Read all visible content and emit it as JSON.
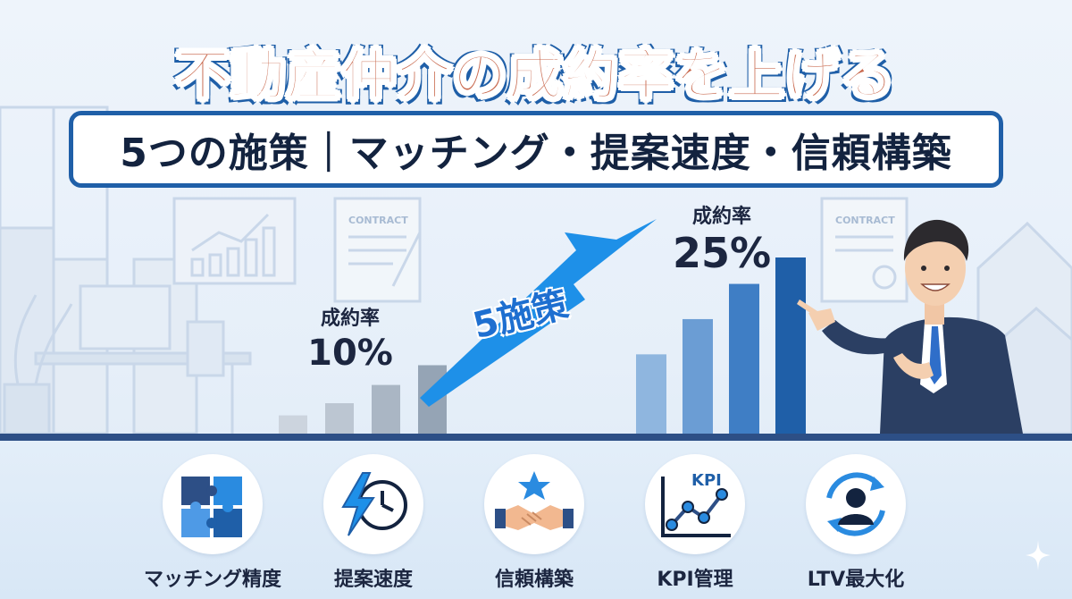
{
  "title": {
    "main": "不動産仲介の成約率を上げる",
    "subtitle": "5つの施策｜マッチング・提案速度・信頼構築"
  },
  "background": {
    "contract_label_left": "CONTRACT",
    "contract_label_right": "CONTRACT"
  },
  "before": {
    "label": "成約率",
    "value": "10%"
  },
  "after": {
    "label": "成約率",
    "value": "25%"
  },
  "arrow_label": "5施策",
  "icons": [
    {
      "label": "マッチング精度",
      "icon": "puzzle-icon"
    },
    {
      "label": "提案速度",
      "icon": "lightning-clock-icon"
    },
    {
      "label": "信頼構築",
      "icon": "handshake-star-icon"
    },
    {
      "label": "KPI管理",
      "icon": "kpi-chart-icon",
      "badge": "KPI"
    },
    {
      "label": "LTV最大化",
      "icon": "person-cycle-icon"
    }
  ],
  "colors": {
    "title": "#c96a4f",
    "title_outline": "#1f5fa8",
    "subtitle_border": "#1f5fa8",
    "arrow": "#1e90e8",
    "bars_before": "#9aa8b8",
    "bars_after": "#2a6bb8"
  },
  "bars": {
    "before_levels": [
      0.12,
      0.2,
      0.32,
      0.45
    ],
    "after_levels": [
      0.45,
      0.65,
      0.85,
      1.0
    ]
  }
}
